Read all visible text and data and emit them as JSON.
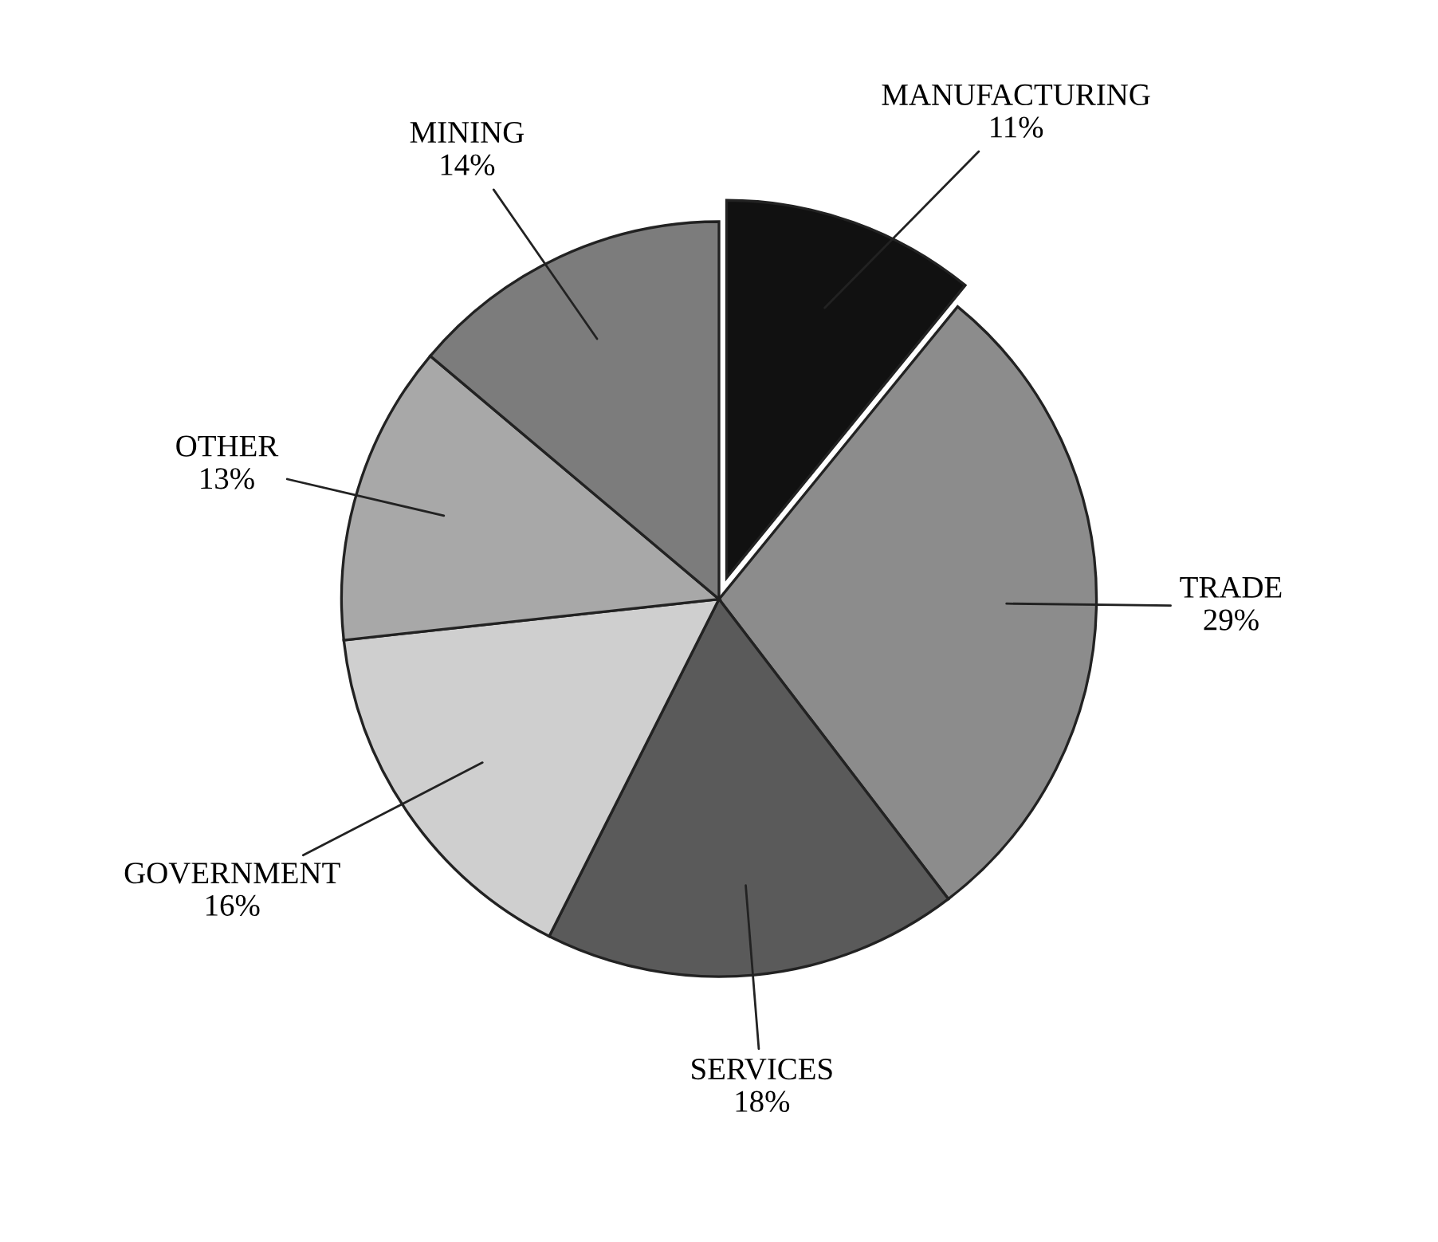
{
  "chart_data": {
    "type": "pie",
    "categories": [
      "MANUFACTURING",
      "TRADE",
      "SERVICES",
      "GOVERNMENT",
      "OTHER",
      "MINING"
    ],
    "values": [
      11,
      29,
      18,
      16,
      13,
      14
    ],
    "value_labels": [
      "11%",
      "29%",
      "18%",
      "16%",
      "13%",
      "14%"
    ],
    "colors": [
      "#111111",
      "#8c8c8c",
      "#5a5a5a",
      "#cfcfcf",
      "#a8a8a8",
      "#7c7c7c"
    ]
  }
}
